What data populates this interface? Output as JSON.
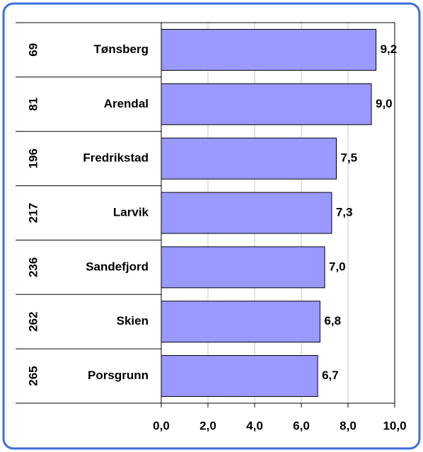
{
  "chart_data": {
    "type": "bar",
    "orientation": "horizontal",
    "categories": [
      "Tønsberg",
      "Arendal",
      "Fredrikstad",
      "Larvik",
      "Sandefjord",
      "Skien",
      "Porsgrunn"
    ],
    "ranks": [
      69,
      81,
      196,
      217,
      236,
      262,
      265
    ],
    "values": [
      9.2,
      9.0,
      7.5,
      7.3,
      7.0,
      6.8,
      6.7
    ],
    "value_labels": [
      "9,2",
      "9,0",
      "7,5",
      "7,3",
      "7,0",
      "6,8",
      "6,7"
    ],
    "color": "#9999ff",
    "xlim": [
      0,
      10
    ],
    "xticks": [
      {
        "value": 0,
        "label": "0,0"
      },
      {
        "value": 2,
        "label": "2,0"
      },
      {
        "value": 4,
        "label": "4,0"
      },
      {
        "value": 6,
        "label": "6,0"
      },
      {
        "value": 8,
        "label": "8,0"
      },
      {
        "value": 10,
        "label": "10,0"
      }
    ],
    "grid": true
  }
}
